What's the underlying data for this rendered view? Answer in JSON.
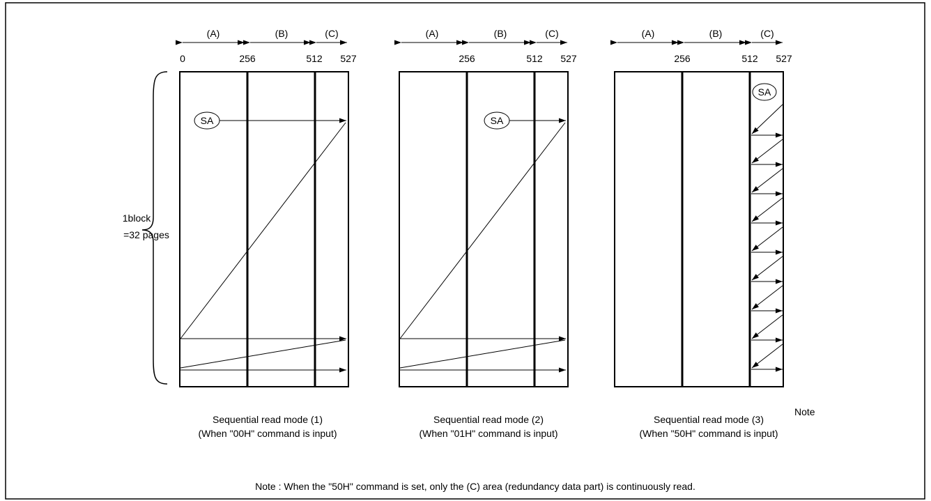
{
  "diagrams": [
    {
      "id": "mode1",
      "region_labels": [
        "(A)",
        "(B)",
        "(C)"
      ],
      "ticks": [
        "0",
        "256",
        "512",
        "527"
      ],
      "sa_label": "SA",
      "caption_line1": "Sequential read mode (1)",
      "caption_line2": "(When \"00H\" command is input)"
    },
    {
      "id": "mode2",
      "region_labels": [
        "(A)",
        "(B)",
        "(C)"
      ],
      "ticks": [
        "256",
        "512",
        "527"
      ],
      "sa_label": "SA",
      "caption_line1": "Sequential read mode (2)",
      "caption_line2": "(When \"01H\" command is input)"
    },
    {
      "id": "mode3",
      "region_labels": [
        "(A)",
        "(B)",
        "(C)"
      ],
      "ticks": [
        "256",
        "512",
        "527"
      ],
      "sa_label": "SA",
      "caption_line1": "Sequential read mode (3)",
      "caption_superscript": "Note",
      "caption_line2": "(When \"50H\" command is input)"
    }
  ],
  "block_label_line1": "1block",
  "block_label_line2": "=32 pages",
  "footnote": "Note : When the \"50H\" command is set, only the (C) area (redundancy data part) is continuously read."
}
